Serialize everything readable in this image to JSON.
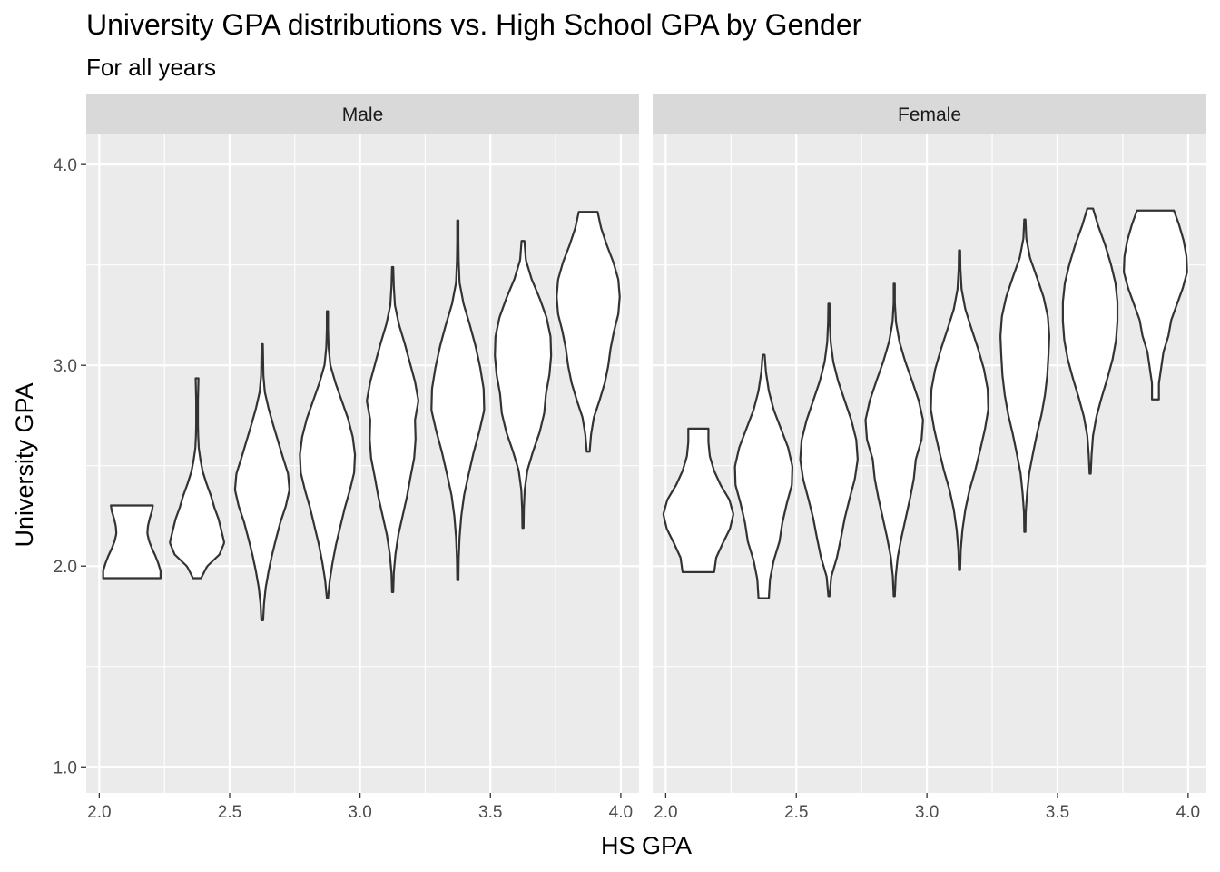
{
  "title": "University GPA distributions vs. High School GPA by Gender",
  "subtitle": "For all years",
  "chart_data": {
    "type": "violin",
    "xlabel": "HS GPA",
    "ylabel": "University GPA",
    "xlim": [
      1.95,
      4.07
    ],
    "ylim": [
      0.87,
      4.15
    ],
    "x_ticks": [
      "2.0",
      "2.5",
      "3.0",
      "3.5",
      "4.0"
    ],
    "y_ticks": [
      "1.0",
      "2.0",
      "3.0",
      "4.0"
    ],
    "grid": true,
    "violin_halfwidth": 0.11,
    "panels": [
      {
        "name": "Male",
        "violins": [
          {
            "x": 2.125,
            "ymin": 1.94,
            "ymax": 2.31,
            "profile": [
              1.0,
              1.0,
              0.92,
              0.82,
              0.7,
              0.6,
              0.54,
              0.56,
              0.62,
              0.7,
              0.74
            ]
          },
          {
            "x": 2.375,
            "ymin": 1.94,
            "ymax": 2.94,
            "profile": [
              0.14,
              0.35,
              0.78,
              0.95,
              0.85,
              0.75,
              0.6,
              0.48,
              0.33,
              0.2,
              0.12,
              0.06,
              0.04,
              0.03,
              0.03,
              0.03,
              0.04,
              0.05
            ]
          },
          {
            "x": 2.625,
            "ymin": 1.73,
            "ymax": 3.11,
            "profile": [
              0.03,
              0.06,
              0.12,
              0.22,
              0.34,
              0.48,
              0.63,
              0.82,
              0.95,
              0.9,
              0.72,
              0.55,
              0.38,
              0.22,
              0.09,
              0.04,
              0.03,
              0.02
            ]
          },
          {
            "x": 2.875,
            "ymin": 1.84,
            "ymax": 3.27,
            "profile": [
              0.02,
              0.08,
              0.18,
              0.3,
              0.45,
              0.6,
              0.78,
              0.93,
              0.96,
              0.88,
              0.72,
              0.5,
              0.28,
              0.1,
              0.04,
              0.02,
              0.02
            ]
          },
          {
            "x": 3.125,
            "ymin": 1.87,
            "ymax": 3.49,
            "profile": [
              0.02,
              0.04,
              0.1,
              0.2,
              0.35,
              0.5,
              0.62,
              0.75,
              0.8,
              0.78,
              0.9,
              0.78,
              0.6,
              0.42,
              0.22,
              0.08,
              0.04,
              0.02
            ]
          },
          {
            "x": 3.375,
            "ymin": 1.93,
            "ymax": 3.73,
            "profile": [
              0.02,
              0.03,
              0.06,
              0.12,
              0.22,
              0.38,
              0.55,
              0.75,
              0.92,
              0.9,
              0.78,
              0.62,
              0.42,
              0.2,
              0.06,
              0.03,
              0.02,
              0.02
            ]
          },
          {
            "x": 3.625,
            "ymin": 2.19,
            "ymax": 3.62,
            "profile": [
              0.02,
              0.03,
              0.06,
              0.15,
              0.35,
              0.58,
              0.74,
              0.8,
              0.92,
              0.98,
              0.96,
              0.82,
              0.58,
              0.3,
              0.1,
              0.05
            ]
          },
          {
            "x": 3.875,
            "ymin": 2.57,
            "ymax": 3.77,
            "profile": [
              0.05,
              0.1,
              0.2,
              0.4,
              0.58,
              0.7,
              0.78,
              0.9,
              1.05,
              1.1,
              1.05,
              0.88,
              0.65,
              0.45,
              0.32
            ]
          }
        ]
      },
      {
        "name": "Female",
        "violins": [
          {
            "x": 2.125,
            "ymin": 1.97,
            "ymax": 2.69,
            "profile": [
              0.55,
              0.62,
              0.85,
              1.1,
              1.22,
              1.08,
              0.78,
              0.55,
              0.4,
              0.35,
              0.35
            ]
          },
          {
            "x": 2.375,
            "ymin": 1.84,
            "ymax": 3.06,
            "profile": [
              0.18,
              0.22,
              0.35,
              0.55,
              0.65,
              0.8,
              0.98,
              1.0,
              0.85,
              0.6,
              0.35,
              0.18,
              0.08,
              0.03
            ]
          },
          {
            "x": 2.625,
            "ymin": 1.85,
            "ymax": 3.31,
            "profile": [
              0.02,
              0.08,
              0.28,
              0.42,
              0.55,
              0.72,
              0.9,
              1.0,
              0.95,
              0.78,
              0.55,
              0.32,
              0.15,
              0.06,
              0.03,
              0.02
            ]
          },
          {
            "x": 2.875,
            "ymin": 1.85,
            "ymax": 3.41,
            "profile": [
              0.02,
              0.05,
              0.12,
              0.25,
              0.4,
              0.55,
              0.68,
              0.75,
              0.95,
              1.0,
              0.85,
              0.62,
              0.38,
              0.18,
              0.06,
              0.02,
              0.02
            ]
          },
          {
            "x": 3.125,
            "ymin": 1.98,
            "ymax": 3.58,
            "profile": [
              0.02,
              0.04,
              0.1,
              0.2,
              0.35,
              0.55,
              0.72,
              0.88,
              1.0,
              0.98,
              0.85,
              0.65,
              0.42,
              0.2,
              0.07,
              0.03,
              0.02
            ]
          },
          {
            "x": 3.375,
            "ymin": 2.17,
            "ymax": 3.73,
            "profile": [
              0.02,
              0.03,
              0.08,
              0.15,
              0.28,
              0.42,
              0.58,
              0.7,
              0.78,
              0.82,
              0.85,
              0.8,
              0.65,
              0.42,
              0.18,
              0.05,
              0.02
            ]
          },
          {
            "x": 3.625,
            "ymin": 2.46,
            "ymax": 3.79,
            "profile": [
              0.02,
              0.05,
              0.1,
              0.22,
              0.4,
              0.6,
              0.78,
              0.9,
              0.95,
              0.95,
              0.88,
              0.72,
              0.52,
              0.28,
              0.08
            ]
          },
          {
            "x": 3.875,
            "ymin": 2.83,
            "ymax": 3.78,
            "profile": [
              0.12,
              0.12,
              0.2,
              0.28,
              0.45,
              0.55,
              0.75,
              0.95,
              1.1,
              1.08,
              0.98,
              0.82,
              0.62
            ]
          }
        ]
      }
    ]
  }
}
